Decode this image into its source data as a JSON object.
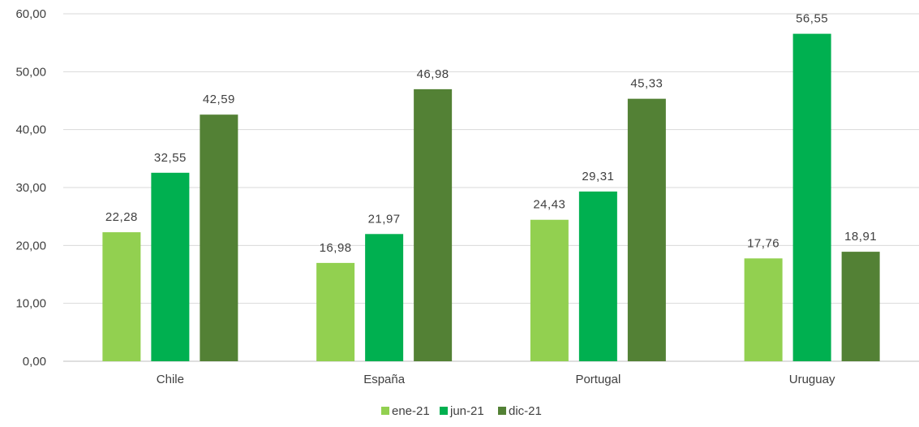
{
  "chart_data": {
    "type": "bar",
    "title": "",
    "xlabel": "",
    "ylabel": "",
    "categories": [
      "Chile",
      "España",
      "Portugal",
      "Uruguay"
    ],
    "series": [
      {
        "name": "ene-21",
        "color": "#92d050",
        "values": [
          22.28,
          16.98,
          24.43,
          17.76
        ],
        "labels": [
          "22,28",
          "16,98",
          "24,43",
          "17,76"
        ]
      },
      {
        "name": "jun-21",
        "color": "#00b050",
        "values": [
          32.55,
          21.97,
          29.31,
          56.55
        ],
        "labels": [
          "32,55",
          "21,97",
          "29,31",
          "56,55"
        ]
      },
      {
        "name": "dic-21",
        "color": "#538135",
        "values": [
          42.59,
          46.98,
          45.33,
          18.91
        ],
        "labels": [
          "42,59",
          "46,98",
          "45,33",
          "18,91"
        ]
      }
    ],
    "ylim": [
      0,
      60
    ],
    "yticks": [
      0,
      10,
      20,
      30,
      40,
      50,
      60
    ],
    "ytick_labels": [
      "0,00",
      "10,00",
      "20,00",
      "30,00",
      "40,00",
      "50,00",
      "60,00"
    ],
    "grid": true,
    "legend_position": "bottom"
  }
}
